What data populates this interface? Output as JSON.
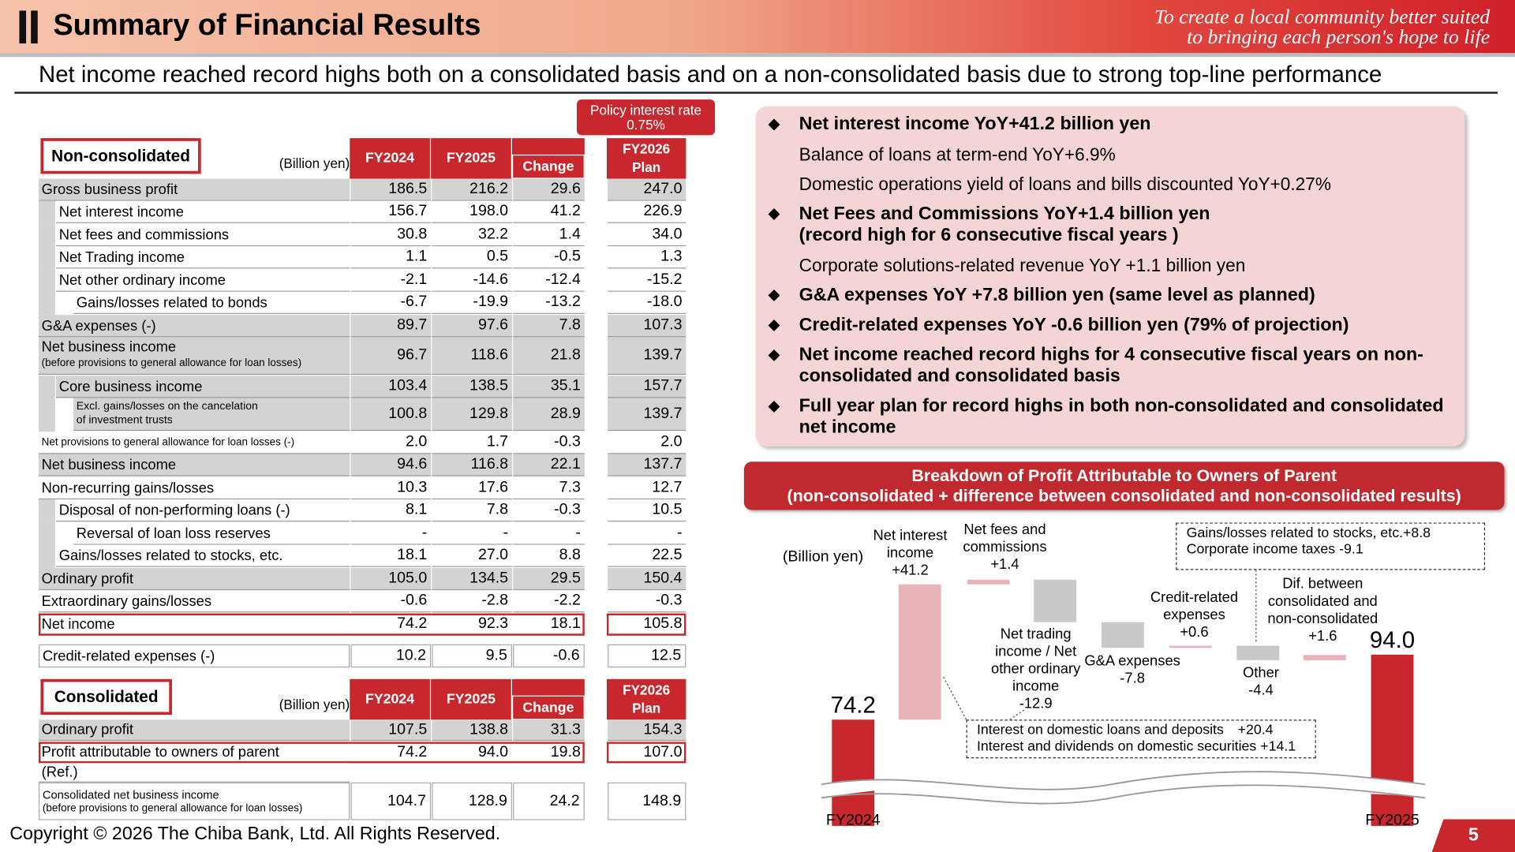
{
  "header": {
    "title": "Summary of Financial Results",
    "tagline": [
      "To create a local community better suited",
      "to bringing each person's hope to life"
    ]
  },
  "subtitle": "Net income reached record highs both on a consolidated basis and on a non-consolidated basis due to strong top-line performance",
  "policy_rate": {
    "label": "Policy interest rate",
    "value": "0.75%"
  },
  "non_consolidated": {
    "title": "Non-consolidated",
    "unit": "(Billion yen)",
    "columns": [
      "FY2024",
      "FY2025",
      "Change"
    ],
    "plan_column": [
      "FY2026",
      "Plan"
    ],
    "rows": [
      {
        "label": "Gross business profit",
        "values": [
          "186.5",
          "216.2",
          "29.6",
          "247.0"
        ]
      },
      {
        "label": "Net interest income",
        "values": [
          "156.7",
          "198.0",
          "41.2",
          "226.9"
        ]
      },
      {
        "label": "Net fees and commissions",
        "values": [
          "30.8",
          "32.2",
          "1.4",
          "34.0"
        ]
      },
      {
        "label": "Net Trading  income",
        "values": [
          "1.1",
          "0.5",
          "-0.5",
          "1.3"
        ]
      },
      {
        "label": "Net other ordinary income",
        "values": [
          "-2.1",
          "-14.6",
          "-12.4",
          "-15.2"
        ]
      },
      {
        "label": "Gains/losses related to bonds",
        "values": [
          "-6.7",
          "-19.9",
          "-13.2",
          "-18.0"
        ]
      },
      {
        "label": "G&A expenses (-)",
        "values": [
          "89.7",
          "97.6",
          "7.8",
          "107.3"
        ]
      },
      {
        "label": "Net business income",
        "sub": "(before provisions to general allowance for loan losses)",
        "values": [
          "96.7",
          "118.6",
          "21.8",
          "139.7"
        ]
      },
      {
        "label": "Core business income",
        "values": [
          "103.4",
          "138.5",
          "35.1",
          "157.7"
        ]
      },
      {
        "label": "Excl. gains/losses on the cancelation",
        "sub": "of investment trusts",
        "values": [
          "100.8",
          "129.8",
          "28.9",
          "139.7"
        ]
      },
      {
        "label": "Net provisions to general allowance for loan losses (-)",
        "values": [
          "2.0",
          "1.7",
          "-0.3",
          "2.0"
        ]
      },
      {
        "label": "Net business income",
        "values": [
          "94.6",
          "116.8",
          "22.1",
          "137.7"
        ]
      },
      {
        "label": "Non-recurring gains/losses",
        "values": [
          "10.3",
          "17.6",
          "7.3",
          "12.7"
        ]
      },
      {
        "label": "Disposal of non-performing loans (-)",
        "values": [
          "8.1",
          "7.8",
          "-0.3",
          "10.5"
        ]
      },
      {
        "label": "Reversal of loan loss reserves",
        "values": [
          "-",
          "-",
          "-",
          "-"
        ]
      },
      {
        "label": "Gains/losses related to stocks, etc.",
        "values": [
          "18.1",
          "27.0",
          "8.8",
          "22.5"
        ]
      },
      {
        "label": "Ordinary profit",
        "values": [
          "105.0",
          "134.5",
          "29.5",
          "150.4"
        ]
      },
      {
        "label": "Extraordinary gains/losses",
        "values": [
          "-0.6",
          "-2.8",
          "-2.2",
          "-0.3"
        ]
      },
      {
        "label": "Net income",
        "values": [
          "74.2",
          "92.3",
          "18.1",
          "105.8"
        ]
      },
      {
        "label": "Credit-related expenses (-)",
        "values": [
          "10.2",
          "9.5",
          "-0.6",
          "12.5"
        ]
      }
    ]
  },
  "consolidated": {
    "title": "Consolidated",
    "unit": "(Billion yen)",
    "columns": [
      "FY2024",
      "FY2025",
      "Change"
    ],
    "plan_column": [
      "FY2026",
      "Plan"
    ],
    "rows": [
      {
        "label": "Ordinary profit",
        "values": [
          "107.5",
          "138.8",
          "31.3",
          "154.3"
        ]
      },
      {
        "label": "Profit attributable to owners of parent",
        "values": [
          "74.2",
          "94.0",
          "19.8",
          "107.0"
        ]
      },
      {
        "label": "(Ref.)"
      },
      {
        "label": "Consolidated net business income",
        "sub": "(before provisions to general allowance for loan losses)",
        "values": [
          "104.7",
          "128.9",
          "24.2",
          "148.9"
        ]
      }
    ]
  },
  "highlights": [
    {
      "heading": "Net interest income YoY+41.2 billion yen",
      "details": [
        "Balance of loans at term-end YoY+6.9%",
        "Domestic operations yield of loans and bills discounted YoY+0.27%"
      ]
    },
    {
      "heading": "Net Fees and Commissions YoY+1.4 billion yen",
      "heading_note": "(record high for 6 consecutive fiscal years )",
      "details": [
        "Corporate solutions-related revenue YoY +1.1 billion yen"
      ]
    },
    {
      "heading": "G&A expenses YoY +7.8 billion yen (same level as planned)"
    },
    {
      "heading": "Credit-related expenses  YoY -0.6 billion yen (79% of projection)"
    },
    {
      "heading": "Net income reached record highs for 4 consecutive fiscal years on non-consolidated and consolidated basis"
    },
    {
      "heading": "Full year plan for record highs in both non-consolidated and consolidated net income"
    }
  ],
  "chart_data": {
    "type": "waterfall",
    "title": "Breakdown of Profit Attributable to Owners of Parent",
    "subtitle": "(non-consolidated + difference between consolidated and non-consolidated results)",
    "unit_label": "(Billion yen)",
    "categories": [
      "FY2024",
      "Net interest income",
      "Net fees and commissions",
      "Net trading income / Net other ordinary income",
      "G&A expenses",
      "Credit-related expenses",
      "Other",
      "Dif. between consolidated and non-consolidated",
      "FY2025"
    ],
    "values": [
      74.2,
      41.2,
      1.4,
      -12.9,
      -7.8,
      0.6,
      -4.4,
      1.6,
      94.0
    ],
    "value_labels": [
      "74.2",
      "+41.2",
      "+1.4",
      "-12.9",
      "-7.8",
      "+0.6",
      "-4.4",
      "+1.6",
      "94.0"
    ],
    "colors": {
      "total": "#c8282d",
      "increase": "#e9b4b8",
      "decrease": "#c8c8c8"
    },
    "notes": [
      [
        "Interest on domestic loans and deposits　+20.4",
        "Interest and dividends on domestic securities  +14.1"
      ],
      [
        "Gains/losses related to stocks, etc.+8.8",
        "Corporate income taxes -9.1"
      ]
    ]
  },
  "footer": {
    "copyright": "Copyright © 2026 The Chiba Bank, Ltd. All Rights Reserved.",
    "page": "5"
  }
}
